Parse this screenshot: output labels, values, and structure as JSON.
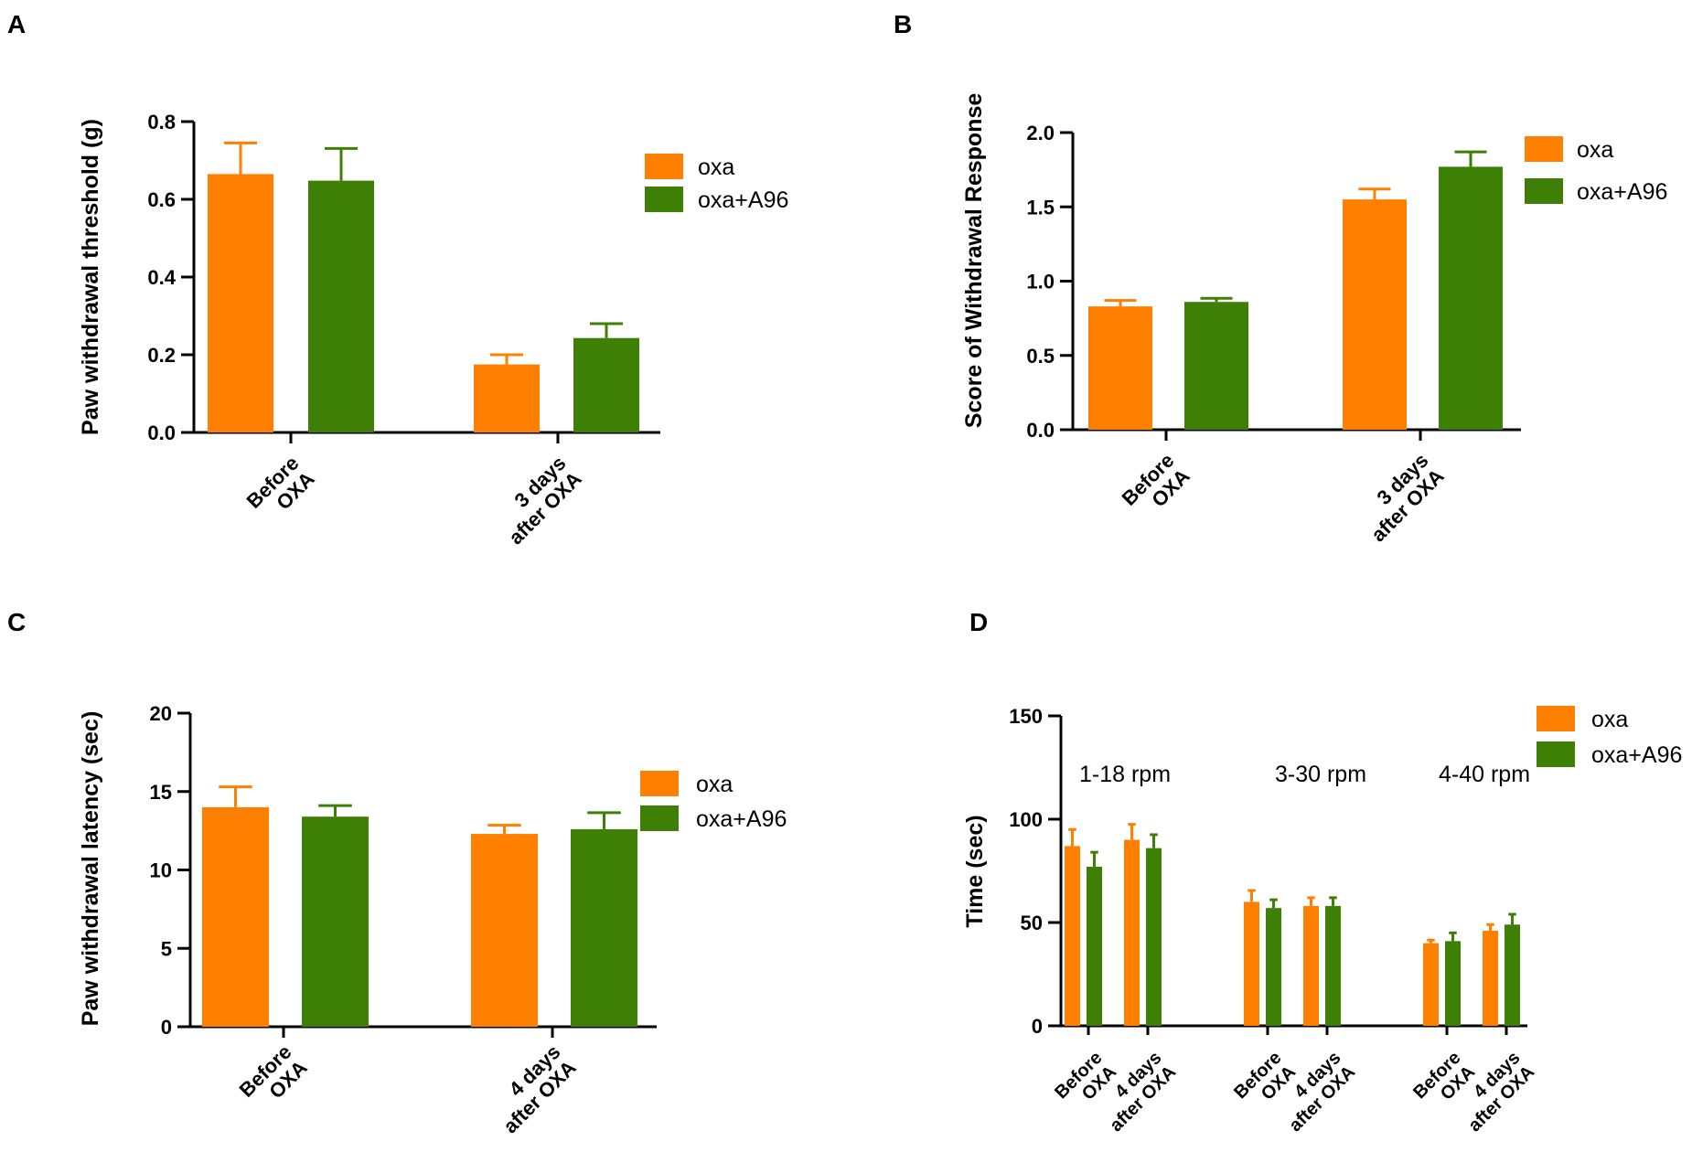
{
  "colors": {
    "oxa": "#FF8000",
    "oxa_a96": "#3E7F06",
    "axis": "#000000"
  },
  "legend": {
    "oxa": "oxa",
    "oxa_a96": "oxa+A96"
  },
  "chart_data": [
    {
      "panel": "A",
      "type": "bar",
      "ylabel": "Paw withdrawal threshold (g)",
      "ylim": [
        0,
        0.8
      ],
      "yticks": [
        0.0,
        0.2,
        0.4,
        0.6,
        0.8
      ],
      "ytick_labels": [
        "0.0",
        "0.2",
        "0.4",
        "0.6",
        "0.8"
      ],
      "categories": [
        [
          "Before",
          "OXA"
        ],
        [
          "3 days",
          "after OXA"
        ]
      ],
      "series": [
        {
          "name": "oxa",
          "values": [
            0.665,
            0.175
          ],
          "errors": [
            0.08,
            0.025
          ]
        },
        {
          "name": "oxa+A96",
          "values": [
            0.648,
            0.243
          ],
          "errors": [
            0.083,
            0.037
          ]
        }
      ],
      "legend_position": "top-right"
    },
    {
      "panel": "B",
      "type": "bar",
      "ylabel": "Score of Withdrawal Response",
      "ylim": [
        0,
        2.0
      ],
      "yticks": [
        0.0,
        0.5,
        1.0,
        1.5,
        2.0
      ],
      "ytick_labels": [
        "0.0",
        "0.5",
        "1.0",
        "1.5",
        "2.0"
      ],
      "categories": [
        [
          "Before",
          "OXA"
        ],
        [
          "3 days",
          "after OXA"
        ]
      ],
      "series": [
        {
          "name": "oxa",
          "values": [
            0.83,
            1.55
          ],
          "errors": [
            0.04,
            0.07
          ]
        },
        {
          "name": "oxa+A96",
          "values": [
            0.86,
            1.77
          ],
          "errors": [
            0.025,
            0.1
          ]
        }
      ],
      "legend_position": "top-right"
    },
    {
      "panel": "C",
      "type": "bar",
      "ylabel": "Paw withdrawal  latency (sec)",
      "ylim": [
        0,
        20
      ],
      "yticks": [
        0,
        5,
        10,
        15,
        20
      ],
      "ytick_labels": [
        "0",
        "5",
        "10",
        "15",
        "20"
      ],
      "categories": [
        [
          "Before",
          "OXA"
        ],
        [
          "4 days",
          "after OXA"
        ]
      ],
      "series": [
        {
          "name": "oxa",
          "values": [
            14.0,
            12.3
          ],
          "errors": [
            1.3,
            0.55
          ]
        },
        {
          "name": "oxa+A96",
          "values": [
            13.4,
            12.6
          ],
          "errors": [
            0.7,
            1.05
          ]
        }
      ],
      "legend_position": "top-right"
    },
    {
      "panel": "D",
      "type": "bar",
      "ylabel": "Time (sec)",
      "ylim": [
        0,
        150
      ],
      "yticks": [
        0,
        50,
        100,
        150
      ],
      "ytick_labels": [
        "0",
        "50",
        "100",
        "150"
      ],
      "categories": [
        [
          "Before",
          "OXA"
        ],
        [
          "4 days",
          "after OXA"
        ]
      ],
      "groups": [
        {
          "label": "1-18 rpm",
          "series": [
            {
              "name": "oxa",
              "values": [
                87,
                90
              ],
              "errors": [
                8,
                7.5
              ]
            },
            {
              "name": "oxa+A96",
              "values": [
                77,
                86
              ],
              "errors": [
                7,
                6.5
              ]
            }
          ]
        },
        {
          "label": "3-30 rpm",
          "series": [
            {
              "name": "oxa",
              "values": [
                60,
                58
              ],
              "errors": [
                5.5,
                4
              ]
            },
            {
              "name": "oxa+A96",
              "values": [
                57,
                58
              ],
              "errors": [
                4,
                4
              ]
            }
          ]
        },
        {
          "label": "4-40 rpm",
          "series": [
            {
              "name": "oxa",
              "values": [
                40,
                46
              ],
              "errors": [
                1.5,
                3
              ]
            },
            {
              "name": "oxa+A96",
              "values": [
                41,
                49
              ],
              "errors": [
                4,
                5
              ]
            }
          ]
        }
      ],
      "legend_position": "top-right"
    }
  ]
}
